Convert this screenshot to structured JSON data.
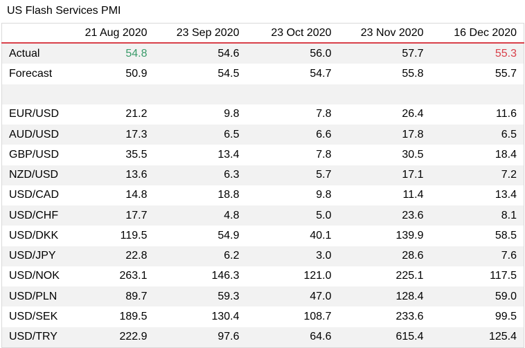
{
  "title": "US Flash Services PMI",
  "colors": {
    "header_rule": "#d9404a",
    "actual_up": "#3a9b6a",
    "actual_down": "#d9404a",
    "row_shade": "#f2f2f2"
  },
  "columns": [
    "21 Aug 2020",
    "23 Sep 2020",
    "23 Oct 2020",
    "23 Nov 2020",
    "16 Dec 2020"
  ],
  "rows": {
    "actual": {
      "label": "Actual",
      "values": [
        "54.8",
        "54.6",
        "56.0",
        "57.7",
        "55.3"
      ]
    },
    "forecast": {
      "label": "Forecast",
      "values": [
        "50.9",
        "54.5",
        "54.7",
        "55.8",
        "55.7"
      ]
    },
    "pairs": [
      {
        "label": "EUR/USD",
        "values": [
          "21.2",
          "9.8",
          "7.8",
          "26.4",
          "11.6"
        ]
      },
      {
        "label": "AUD/USD",
        "values": [
          "17.3",
          "6.5",
          "6.6",
          "17.8",
          "6.5"
        ]
      },
      {
        "label": "GBP/USD",
        "values": [
          "35.5",
          "13.4",
          "7.8",
          "30.5",
          "18.4"
        ]
      },
      {
        "label": "NZD/USD",
        "values": [
          "13.6",
          "6.3",
          "5.7",
          "17.1",
          "7.2"
        ]
      },
      {
        "label": "USD/CAD",
        "values": [
          "14.8",
          "18.8",
          "9.8",
          "11.4",
          "13.4"
        ]
      },
      {
        "label": "USD/CHF",
        "values": [
          "17.7",
          "4.8",
          "5.0",
          "23.6",
          "8.1"
        ]
      },
      {
        "label": "USD/DKK",
        "values": [
          "119.5",
          "54.9",
          "40.1",
          "139.9",
          "58.5"
        ]
      },
      {
        "label": "USD/JPY",
        "values": [
          "22.8",
          "6.2",
          "3.0",
          "28.6",
          "7.6"
        ]
      },
      {
        "label": "USD/NOK",
        "values": [
          "263.1",
          "146.3",
          "121.0",
          "225.1",
          "117.5"
        ]
      },
      {
        "label": "USD/PLN",
        "values": [
          "89.7",
          "59.3",
          "47.0",
          "128.4",
          "59.0"
        ]
      },
      {
        "label": "USD/SEK",
        "values": [
          "189.5",
          "130.4",
          "108.7",
          "233.6",
          "99.5"
        ]
      },
      {
        "label": "USD/TRY",
        "values": [
          "222.9",
          "97.6",
          "64.6",
          "615.4",
          "125.4"
        ]
      }
    ]
  }
}
